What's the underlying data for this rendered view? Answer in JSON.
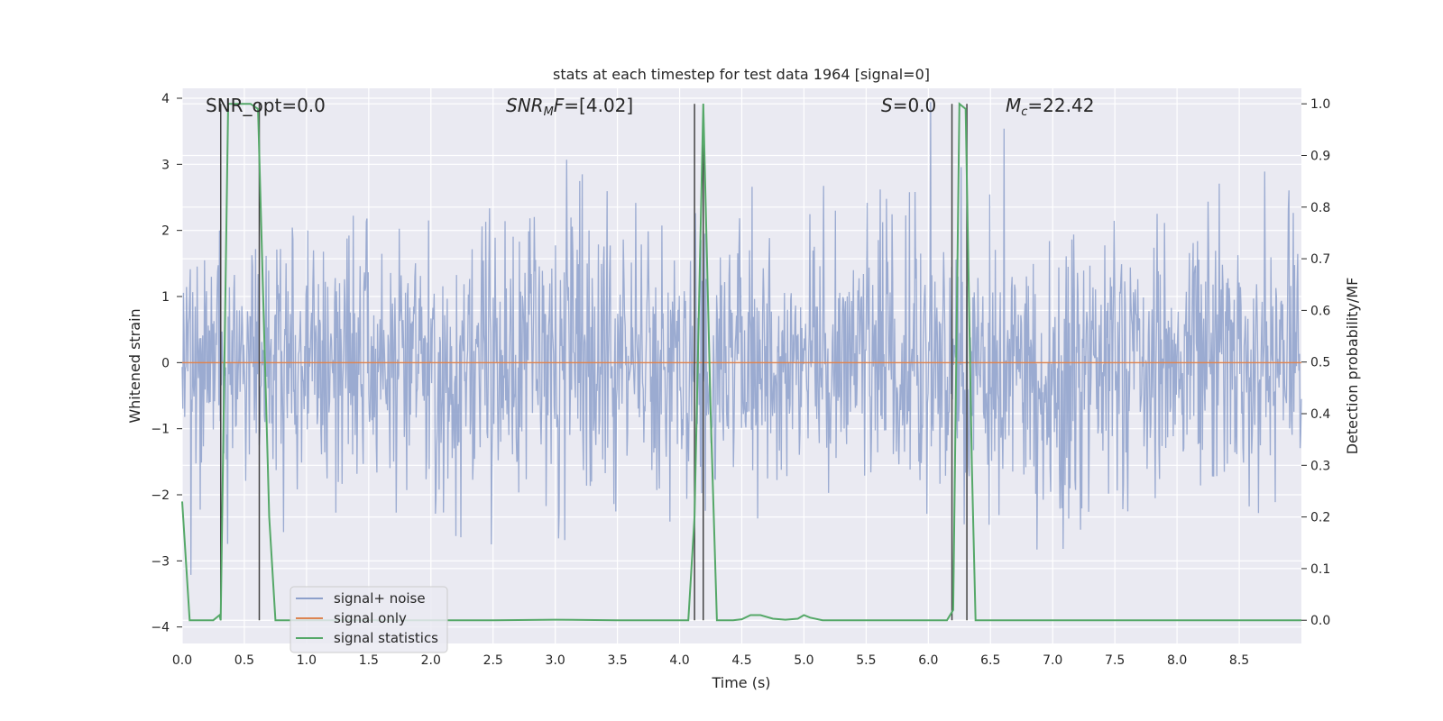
{
  "chart_data": {
    "type": "line",
    "title": "stats at each timestep for test data 1964 [signal=0]",
    "xlabel": "Time (s)",
    "ylabel_left": "Whitened strain",
    "ylabel_right": "Detection probability/MF",
    "xlim": [
      0.0,
      9.0
    ],
    "ylim_left": [
      -4.25,
      4.15
    ],
    "ylim_right": [
      -0.045,
      1.03
    ],
    "x_ticks": [
      "0.0",
      "0.5",
      "1.0",
      "1.5",
      "2.0",
      "2.5",
      "3.0",
      "3.5",
      "4.0",
      "4.5",
      "5.0",
      "5.5",
      "6.0",
      "6.5",
      "7.0",
      "7.5",
      "8.0",
      "8.5"
    ],
    "y_ticks_left": [
      "−4",
      "−3",
      "−2",
      "−1",
      "0",
      "1",
      "2",
      "3",
      "4"
    ],
    "y_ticks_right": [
      "0.0",
      "0.1",
      "0.2",
      "0.3",
      "0.4",
      "0.5",
      "0.6",
      "0.7",
      "0.8",
      "0.9",
      "1.0"
    ],
    "grid": true,
    "legend_position": "lower-left",
    "legend": [
      {
        "label": "signal+ noise",
        "color": "#8da0cb"
      },
      {
        "label": "signal only",
        "color": "#dd8452"
      },
      {
        "label": "signal statistics",
        "color": "#55a868"
      }
    ],
    "annotations": [
      {
        "text": "SNR_opt=0.0",
        "x": 0.18
      },
      {
        "text": "SNR_MF=[4.02]",
        "x": 2.6
      },
      {
        "text": "S=0.0",
        "x": 5.6
      },
      {
        "text": "M_c=22.42",
        "x": 6.6
      }
    ],
    "noise": {
      "description_values": "whitened noise, roughly Gaussian, sigma ~ 1.0",
      "sigma": 1.0,
      "n_samples": 1800,
      "seed": 1964
    },
    "signal_only": {
      "value": 0.0
    },
    "vertical_lines_x": [
      0.31,
      0.62,
      4.12,
      4.19,
      6.19,
      6.31
    ],
    "signal_statistics": [
      [
        0.0,
        0.23
      ],
      [
        0.06,
        0.0
      ],
      [
        0.25,
        0.0
      ],
      [
        0.3,
        0.01
      ],
      [
        0.31,
        0.0
      ],
      [
        0.37,
        1.0
      ],
      [
        0.47,
        1.0
      ],
      [
        0.55,
        1.0
      ],
      [
        0.61,
        0.99
      ],
      [
        0.7,
        0.2
      ],
      [
        0.75,
        0.0
      ],
      [
        1.5,
        0.0
      ],
      [
        2.5,
        0.0
      ],
      [
        3.0,
        0.001
      ],
      [
        3.5,
        0.0
      ],
      [
        4.07,
        0.0
      ],
      [
        4.12,
        0.2
      ],
      [
        4.19,
        1.0
      ],
      [
        4.25,
        0.4
      ],
      [
        4.3,
        0.0
      ],
      [
        4.43,
        0.0
      ],
      [
        4.5,
        0.002
      ],
      [
        4.57,
        0.01
      ],
      [
        4.65,
        0.01
      ],
      [
        4.75,
        0.003
      ],
      [
        4.85,
        0.001
      ],
      [
        4.95,
        0.003
      ],
      [
        5.0,
        0.01
      ],
      [
        5.05,
        0.005
      ],
      [
        5.15,
        0.0
      ],
      [
        6.15,
        0.0
      ],
      [
        6.2,
        0.02
      ],
      [
        6.25,
        1.0
      ],
      [
        6.3,
        0.99
      ],
      [
        6.35,
        0.3
      ],
      [
        6.38,
        0.0
      ],
      [
        7.0,
        0.0
      ],
      [
        8.0,
        0.0
      ],
      [
        9.0,
        0.0
      ]
    ]
  }
}
